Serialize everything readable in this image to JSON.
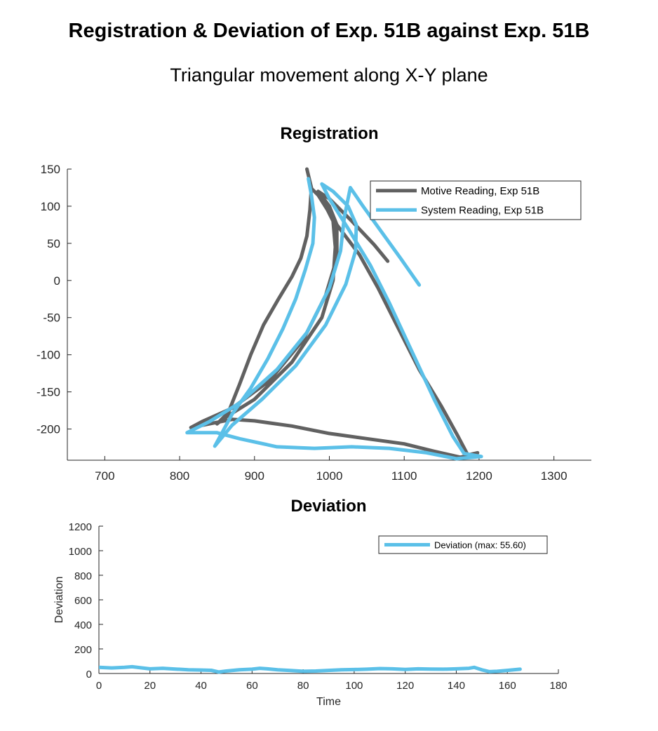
{
  "title": "Registration & Deviation of Exp. 51B against Exp. 51B",
  "subtitle": "Triangular movement along X-Y plane",
  "colors": {
    "motive": "#616161",
    "system": "#5bc0e8",
    "deviation": "#5bc0e8"
  },
  "chart_data": [
    {
      "type": "line",
      "title": "Registration",
      "xlabel": "",
      "ylabel": "",
      "xlim": [
        650,
        1350
      ],
      "ylim": [
        -242,
        150
      ],
      "xticks": [
        700,
        800,
        900,
        1000,
        1100,
        1200,
        1300
      ],
      "yticks": [
        150,
        100,
        50,
        0,
        -50,
        -100,
        -150,
        -200
      ],
      "legend_position": "top-right",
      "series": [
        {
          "name": "Motive Reading, Exp 51B",
          "color": "#616161",
          "points": [
            [
              970,
              150
            ],
            [
              976,
              125
            ],
            [
              974,
              95
            ],
            [
              970,
              60
            ],
            [
              962,
              30
            ],
            [
              950,
              5
            ],
            [
              932,
              -25
            ],
            [
              912,
              -60
            ],
            [
              895,
              -100
            ],
            [
              880,
              -140
            ],
            [
              865,
              -178
            ],
            [
              850,
              -193
            ],
            [
              860,
              -185
            ],
            [
              900,
              -160
            ],
            [
              950,
              -110
            ],
            [
              990,
              -50
            ],
            [
              1005,
              0
            ],
            [
              1008,
              45
            ],
            [
              1005,
              80
            ],
            [
              990,
              110
            ],
            [
              975,
              125
            ],
            [
              985,
              115
            ],
            [
              1010,
              75
            ],
            [
              1040,
              35
            ],
            [
              1065,
              -10
            ],
            [
              1090,
              -60
            ],
            [
              1120,
              -120
            ],
            [
              1150,
              -170
            ],
            [
              1172,
              -210
            ],
            [
              1185,
              -235
            ],
            [
              1198,
              -232
            ],
            [
              1175,
              -238
            ],
            [
              1140,
              -230
            ],
            [
              1100,
              -220
            ],
            [
              1050,
              -213
            ],
            [
              1000,
              -206
            ],
            [
              950,
              -196
            ],
            [
              900,
              -189
            ],
            [
              870,
              -187
            ],
            [
              845,
              -192
            ],
            [
              815,
              -198
            ],
            [
              830,
              -190
            ],
            [
              870,
              -172
            ],
            [
              920,
              -135
            ],
            [
              965,
              -80
            ],
            [
              995,
              -20
            ],
            [
              1010,
              30
            ],
            [
              1010,
              75
            ],
            [
              1000,
              100
            ],
            [
              985,
              120
            ],
            [
              1000,
              110
            ],
            [
              1030,
              80
            ],
            [
              1060,
              48
            ],
            [
              1078,
              26
            ]
          ]
        },
        {
          "name": "System Reading, Exp 51B",
          "color": "#5bc0e8",
          "points": [
            [
              972,
              137
            ],
            [
              976,
              115
            ],
            [
              980,
              85
            ],
            [
              978,
              50
            ],
            [
              968,
              15
            ],
            [
              955,
              -25
            ],
            [
              938,
              -65
            ],
            [
              918,
              -105
            ],
            [
              895,
              -145
            ],
            [
              870,
              -180
            ],
            [
              847,
              -223
            ],
            [
              870,
              -195
            ],
            [
              910,
              -160
            ],
            [
              955,
              -115
            ],
            [
              995,
              -60
            ],
            [
              1022,
              -5
            ],
            [
              1035,
              40
            ],
            [
              1036,
              75
            ],
            [
              1025,
              100
            ],
            [
              1005,
              120
            ],
            [
              990,
              130
            ],
            [
              1000,
              110
            ],
            [
              1025,
              70
            ],
            [
              1055,
              20
            ],
            [
              1080,
              -30
            ],
            [
              1110,
              -95
            ],
            [
              1140,
              -160
            ],
            [
              1165,
              -210
            ],
            [
              1180,
              -233
            ],
            [
              1203,
              -237
            ],
            [
              1170,
              -240
            ],
            [
              1130,
              -232
            ],
            [
              1080,
              -226
            ],
            [
              1030,
              -224
            ],
            [
              980,
              -226
            ],
            [
              930,
              -224
            ],
            [
              880,
              -213
            ],
            [
              850,
              -205
            ],
            [
              810,
              -205
            ],
            [
              840,
              -190
            ],
            [
              880,
              -165
            ],
            [
              930,
              -120
            ],
            [
              970,
              -70
            ],
            [
              1000,
              -10
            ],
            [
              1015,
              40
            ],
            [
              1020,
              85
            ],
            [
              1025,
              110
            ],
            [
              1028,
              125
            ],
            [
              1045,
              100
            ],
            [
              1070,
              65
            ],
            [
              1095,
              30
            ],
            [
              1120,
              -6
            ]
          ]
        }
      ]
    },
    {
      "type": "line",
      "title": "Deviation",
      "xlabel": "Time",
      "ylabel": "Deviation",
      "xlim": [
        0,
        180
      ],
      "ylim": [
        0,
        1200
      ],
      "xticks": [
        0,
        20,
        40,
        60,
        80,
        100,
        120,
        140,
        160,
        180
      ],
      "yticks": [
        1200,
        1000,
        800,
        600,
        400,
        200,
        0
      ],
      "legend_position": "top-right",
      "series": [
        {
          "name": "Deviation (max: 55.60)",
          "color": "#5bc0e8",
          "points": [
            [
              0,
              50
            ],
            [
              5,
              45
            ],
            [
              10,
              50
            ],
            [
              13,
              55
            ],
            [
              17,
              45
            ],
            [
              20,
              38
            ],
            [
              25,
              42
            ],
            [
              30,
              36
            ],
            [
              35,
              30
            ],
            [
              40,
              28
            ],
            [
              44,
              26
            ],
            [
              47,
              12
            ],
            [
              50,
              20
            ],
            [
              55,
              30
            ],
            [
              60,
              35
            ],
            [
              63,
              42
            ],
            [
              66,
              38
            ],
            [
              70,
              30
            ],
            [
              75,
              24
            ],
            [
              80,
              18
            ],
            [
              85,
              20
            ],
            [
              90,
              25
            ],
            [
              95,
              30
            ],
            [
              100,
              32
            ],
            [
              105,
              35
            ],
            [
              110,
              40
            ],
            [
              115,
              38
            ],
            [
              120,
              33
            ],
            [
              125,
              38
            ],
            [
              130,
              36
            ],
            [
              135,
              35
            ],
            [
              140,
              38
            ],
            [
              145,
              42
            ],
            [
              147,
              50
            ],
            [
              150,
              30
            ],
            [
              153,
              15
            ],
            [
              156,
              18
            ],
            [
              160,
              25
            ],
            [
              165,
              35
            ]
          ]
        }
      ]
    }
  ]
}
